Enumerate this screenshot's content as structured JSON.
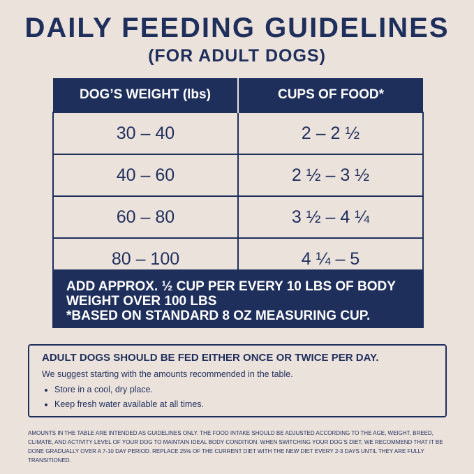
{
  "header": {
    "title": "DAILY FEEDING GUIDELINES",
    "subtitle": "(FOR ADULT DOGS)"
  },
  "table": {
    "columns": [
      "DOG’S WEIGHT (lbs)",
      "CUPS OF FOOD*"
    ],
    "rows": [
      [
        "30 – 40",
        "2 – 2 ½"
      ],
      [
        "40 – 60",
        "2 ½ – 3 ½"
      ],
      [
        "60 – 80",
        "3 ½ – 4 ¼"
      ],
      [
        "80 – 100",
        "4 ¼ – 5"
      ]
    ]
  },
  "table_note": {
    "lines": [
      "ADD APPROX. ½ CUP PER EVERY 10 LBS OF BODY",
      "WEIGHT OVER 100 LBS",
      "*BASED ON STANDARD 8 OZ MEASURING CUP."
    ]
  },
  "info_box": {
    "heading": "ADULT DOGS SHOULD BE FED EITHER ONCE OR TWICE PER DAY.",
    "intro": "We suggest starting with the amounts recommended in the table.",
    "bullets": [
      "Store in a cool, dry place.",
      "Keep fresh water available at all times."
    ]
  },
  "footnote": "AMOUNTS IN THE TABLE ARE INTENDED AS GUIDELINES ONLY. THE FOOD INTAKE SHOULD BE ADJUSTED ACCORDING TO THE AGE, WEIGHT, BREED, CLIMATE, AND ACTIVITY LEVEL OF YOUR DOG TO MAINTAIN IDEAL BODY CONDITION. WHEN SWITCHING YOUR DOG’S DIET, WE RECOMMEND THAT IT BE DONE GRADUALLY OVER A 7-10 DAY PERIOD. REPLACE 25% OF THE CURRENT DIET WITH THE NEW DIET EVERY 2-3 DAYS UNTIL THEY ARE FULLY TRANSITIONED."
}
